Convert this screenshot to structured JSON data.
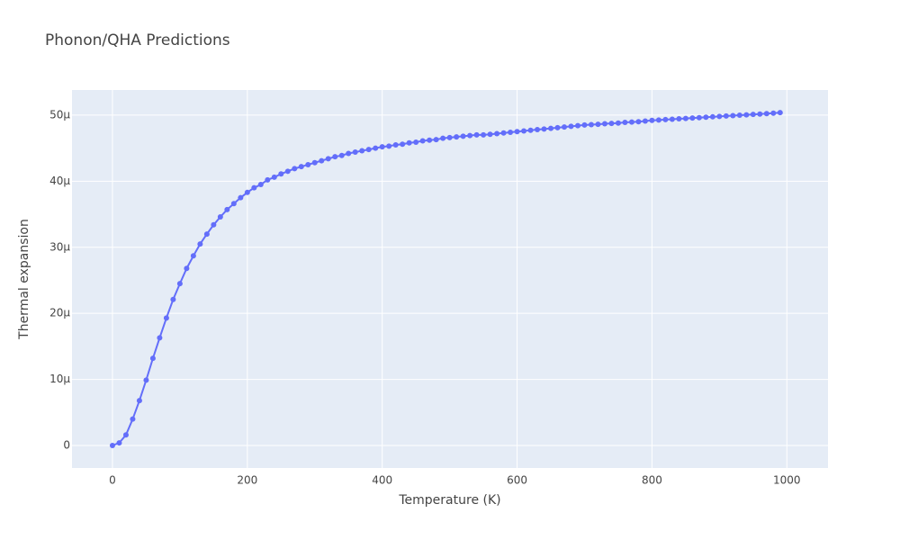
{
  "chart_data": {
    "type": "line",
    "title": "Phonon/QHA Predictions",
    "x_label": "Temperature (K)",
    "y_label": "Thermal expansion",
    "x": [
      0,
      10,
      20,
      30,
      40,
      50,
      60,
      70,
      80,
      90,
      100,
      110,
      120,
      130,
      140,
      150,
      160,
      170,
      180,
      190,
      200,
      210,
      220,
      230,
      240,
      250,
      260,
      270,
      280,
      290,
      300,
      310,
      320,
      330,
      340,
      350,
      360,
      370,
      380,
      390,
      400,
      410,
      420,
      430,
      440,
      450,
      460,
      470,
      480,
      490,
      500,
      510,
      520,
      530,
      540,
      550,
      560,
      570,
      580,
      590,
      600,
      610,
      620,
      630,
      640,
      650,
      660,
      670,
      680,
      690,
      700,
      710,
      720,
      730,
      740,
      750,
      760,
      770,
      780,
      790,
      800,
      810,
      820,
      830,
      840,
      850,
      860,
      870,
      880,
      890,
      900,
      910,
      920,
      930,
      940,
      950,
      960,
      970,
      980,
      990
    ],
    "series": [
      {
        "color": "#636efa",
        "values": [
          0,
          4e-07,
          1.6e-06,
          4e-06,
          6.8e-06,
          9.9e-06,
          1.32e-05,
          1.63e-05,
          1.93e-05,
          2.21e-05,
          2.45e-05,
          2.68e-05,
          2.87e-05,
          3.05e-05,
          3.2e-05,
          3.34e-05,
          3.46e-05,
          3.57e-05,
          3.66e-05,
          3.75e-05,
          3.83e-05,
          3.9e-05,
          3.95e-05,
          4.02e-05,
          4.06e-05,
          4.11e-05,
          4.15e-05,
          4.19e-05,
          4.22e-05,
          4.25e-05,
          4.28e-05,
          4.31e-05,
          4.34e-05,
          4.37e-05,
          4.39e-05,
          4.42e-05,
          4.44e-05,
          4.46e-05,
          4.48e-05,
          4.5e-05,
          4.52e-05,
          4.53e-05,
          4.55e-05,
          4.56e-05,
          4.58e-05,
          4.59e-05,
          4.61e-05,
          4.62e-05,
          4.63e-05,
          4.65e-05,
          4.66e-05,
          4.67e-05,
          4.68e-05,
          4.69e-05,
          4.7e-05,
          4.7e-05,
          4.71e-05,
          4.72e-05,
          4.73e-05,
          4.74e-05,
          4.75e-05,
          4.76e-05,
          4.77e-05,
          4.78e-05,
          4.79e-05,
          4.8e-05,
          4.81e-05,
          4.82e-05,
          4.83e-05,
          4.84e-05,
          4.85e-05,
          4.855e-05,
          4.86e-05,
          4.87e-05,
          4.875e-05,
          4.88e-05,
          4.89e-05,
          4.895e-05,
          4.9e-05,
          4.91e-05,
          4.92e-05,
          4.926e-05,
          4.932e-05,
          4.938e-05,
          4.944e-05,
          4.95e-05,
          4.956e-05,
          4.962e-05,
          4.968e-05,
          4.974e-05,
          4.98e-05,
          4.986e-05,
          4.992e-05,
          4.998e-05,
          5.004e-05,
          5.01e-05,
          5.016e-05,
          5.022e-05,
          5.03e-05,
          5.038e-05
        ]
      }
    ],
    "xlim": [
      -60,
      1061
    ],
    "ylim": [
      -3.4e-06,
      5.38e-05
    ],
    "xticks": [
      0,
      200,
      400,
      600,
      800,
      1000
    ],
    "yticks": [
      0,
      {
        "value": 1e-05,
        "label": "10μ"
      },
      {
        "value": 2e-05,
        "label": "20μ"
      },
      {
        "value": 3e-05,
        "label": "30μ"
      },
      {
        "value": 4e-05,
        "label": "40μ"
      },
      {
        "value": 5e-05,
        "label": "50μ"
      }
    ],
    "grid": true
  }
}
